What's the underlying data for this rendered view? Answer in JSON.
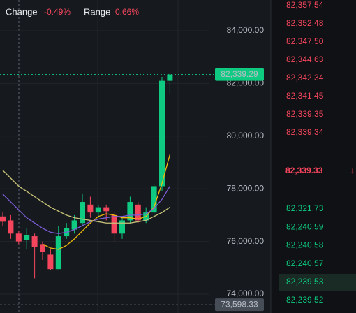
{
  "header": {
    "change_label": "Change",
    "change_value": "-0.49%",
    "range_label": "Range",
    "range_value": "0.66%"
  },
  "chart_data": {
    "type": "candlestick",
    "candles": {
      "open": [
        76950,
        76800,
        76300,
        76050,
        76200,
        75900,
        75500,
        74950,
        76200,
        76450,
        76700,
        77400,
        77100,
        77300,
        77000,
        76300,
        76800,
        77400,
        76800,
        77100,
        78100,
        82100
      ],
      "high": [
        77100,
        77000,
        76400,
        76500,
        76300,
        76000,
        75700,
        76600,
        76700,
        77000,
        77800,
        77700,
        77400,
        77400,
        77100,
        76900,
        77700,
        77500,
        77300,
        78200,
        82250,
        82400
      ],
      "low": [
        76600,
        76100,
        75900,
        75700,
        74600,
        75300,
        74900,
        74950,
        76100,
        76300,
        76600,
        76900,
        76900,
        76800,
        76000,
        76100,
        76700,
        76700,
        76700,
        76900,
        77900,
        81600
      ],
      "close": [
        76750,
        76300,
        76000,
        76250,
        75800,
        75600,
        74950,
        76200,
        76500,
        76800,
        77500,
        77100,
        77300,
        77150,
        76300,
        76800,
        77500,
        76800,
        77100,
        78100,
        82100,
        82339.29
      ]
    },
    "up_color": "#0ecb81",
    "down_color": "#f6465d",
    "series": [
      {
        "color": "#f0b90b",
        "values": [
          null,
          null,
          null,
          null,
          null,
          75900,
          75750,
          75700,
          75850,
          76100,
          76400,
          76700,
          76950,
          77050,
          77000,
          76900,
          76900,
          76850,
          76950,
          77300,
          78200,
          79300
        ]
      },
      {
        "color": "#7b5cd6",
        "values": [
          77800,
          77500,
          77200,
          76900,
          76700,
          76500,
          76350,
          76300,
          76350,
          76450,
          76600,
          76750,
          76850,
          76900,
          76950,
          76950,
          77000,
          77000,
          77050,
          77250,
          77600,
          78100
        ]
      },
      {
        "color": "#c9c27a",
        "values": [
          78700,
          78400,
          78100,
          77900,
          77700,
          77500,
          77300,
          77150,
          77000,
          76900,
          76850,
          76800,
          76750,
          76700,
          76700,
          76700,
          76700,
          76750,
          76800,
          76950,
          77100,
          77300
        ]
      }
    ],
    "ylim": [
      73284,
      85167
    ],
    "yticks": [
      {
        "value": 84000,
        "label": "84,000.00"
      },
      {
        "value": 82000,
        "label": "82,000.00"
      },
      {
        "value": 80000,
        "label": "80,000.00"
      },
      {
        "value": 78000,
        "label": "78,000.00"
      },
      {
        "value": 76000,
        "label": "76,000.00"
      },
      {
        "value": 74000,
        "label": "74,000.00"
      }
    ],
    "grid": true,
    "last_price": {
      "value": 82339.29,
      "label": "82,339.29"
    },
    "crosshair_price": {
      "value": 73598.33,
      "label": "73,598.33"
    }
  },
  "order_book": {
    "asks": [
      "82,357.54",
      "82,352.48",
      "82,347.50",
      "82,344.63",
      "82,342.34",
      "82,341.45",
      "82,339.35",
      "82,339.34"
    ],
    "mid_price": "82,339.33",
    "mid_arrow": "↓",
    "bids": [
      "82,321.73",
      "82,240.59",
      "82,240.58",
      "82,240.57",
      "82,239.53",
      "82,239.52"
    ]
  }
}
